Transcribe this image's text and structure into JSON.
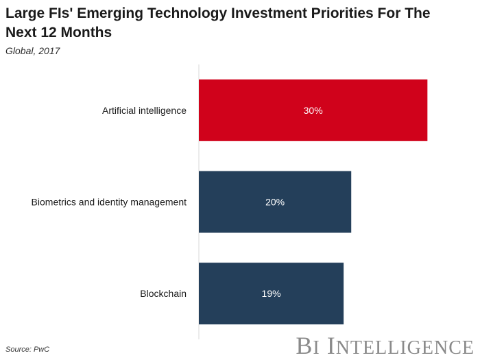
{
  "chart_data": {
    "type": "bar",
    "orientation": "horizontal",
    "title": "Large FIs' Emerging Technology Investment Priorities For The Next 12 Months",
    "subtitle": "Global, 2017",
    "categories": [
      "Artificial intelligence",
      "Biometrics and identity management",
      "Blockchain"
    ],
    "values": [
      30,
      20,
      19
    ],
    "value_labels": [
      "30%",
      "20%",
      "19%"
    ],
    "unit": "%",
    "xlim": [
      0,
      36
    ],
    "colors": [
      "#d0021b",
      "#243f5a",
      "#243f5a"
    ],
    "label_color": "#ffffff",
    "axis_color": "#d9d9d9",
    "grid": false,
    "xlabel": "",
    "ylabel": ""
  },
  "source": "Source: PwC",
  "branding": {
    "logo_text": "BI Intelligence",
    "logo_color": "#8a8a8a"
  }
}
